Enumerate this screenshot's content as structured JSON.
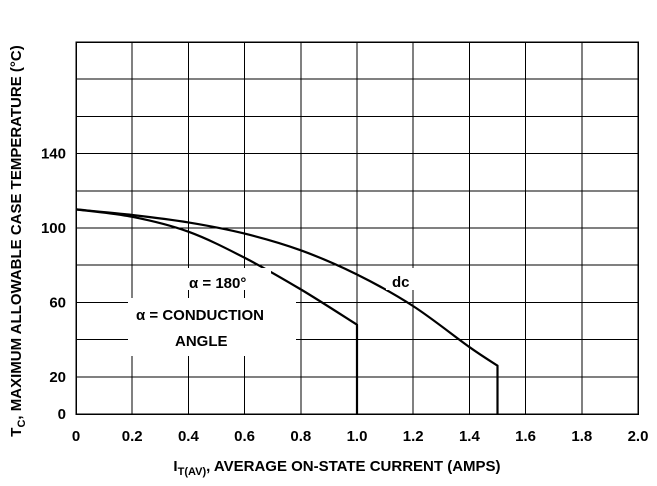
{
  "chart_data": {
    "type": "line",
    "xlim": [
      0,
      2.0
    ],
    "ylim": [
      0,
      200
    ],
    "grid": true,
    "x_ticks": [
      0,
      0.2,
      0.4,
      0.6,
      0.8,
      1.0,
      1.2,
      1.4,
      1.6,
      1.8,
      2.0
    ],
    "x_tick_labels": [
      "0",
      "0.2",
      "0.4",
      "0.6",
      "0.8",
      "1.0",
      "1.2",
      "1.4",
      "1.6",
      "1.8",
      "2.0"
    ],
    "y_grid": [
      0,
      20,
      40,
      60,
      80,
      100,
      120,
      140,
      160,
      180,
      200
    ],
    "y_ticks": [
      0,
      20,
      60,
      100,
      140
    ],
    "y_tick_labels": [
      "0",
      "20",
      "60",
      "100",
      "140"
    ],
    "xlabel": {
      "prefix": "I",
      "subscript": "T(AV)",
      "suffix": ", AVERAGE ON-STATE CURRENT (AMPS)"
    },
    "ylabel": {
      "prefix": "T",
      "subscript": "C",
      "suffix": ", MAXIMUM ALLOWABLE CASE TEMPERATURE (°C)"
    },
    "series": [
      {
        "name": "dc",
        "x": [
          0,
          0.2,
          0.4,
          0.6,
          0.8,
          1.0,
          1.2,
          1.4,
          1.5,
          1.5
        ],
        "y": [
          110,
          107,
          103,
          97,
          88,
          75,
          58,
          36,
          26,
          0
        ]
      },
      {
        "name": "α = 180°",
        "x": [
          0,
          0.2,
          0.4,
          0.6,
          0.8,
          1.0,
          1.0
        ],
        "y": [
          110,
          106,
          98,
          84,
          67,
          48,
          0
        ]
      }
    ],
    "annotations": [
      {
        "text": "dc"
      },
      {
        "text": "α = 180°"
      },
      {
        "text": "α = CONDUCTION"
      },
      {
        "text": "ANGLE"
      }
    ]
  }
}
